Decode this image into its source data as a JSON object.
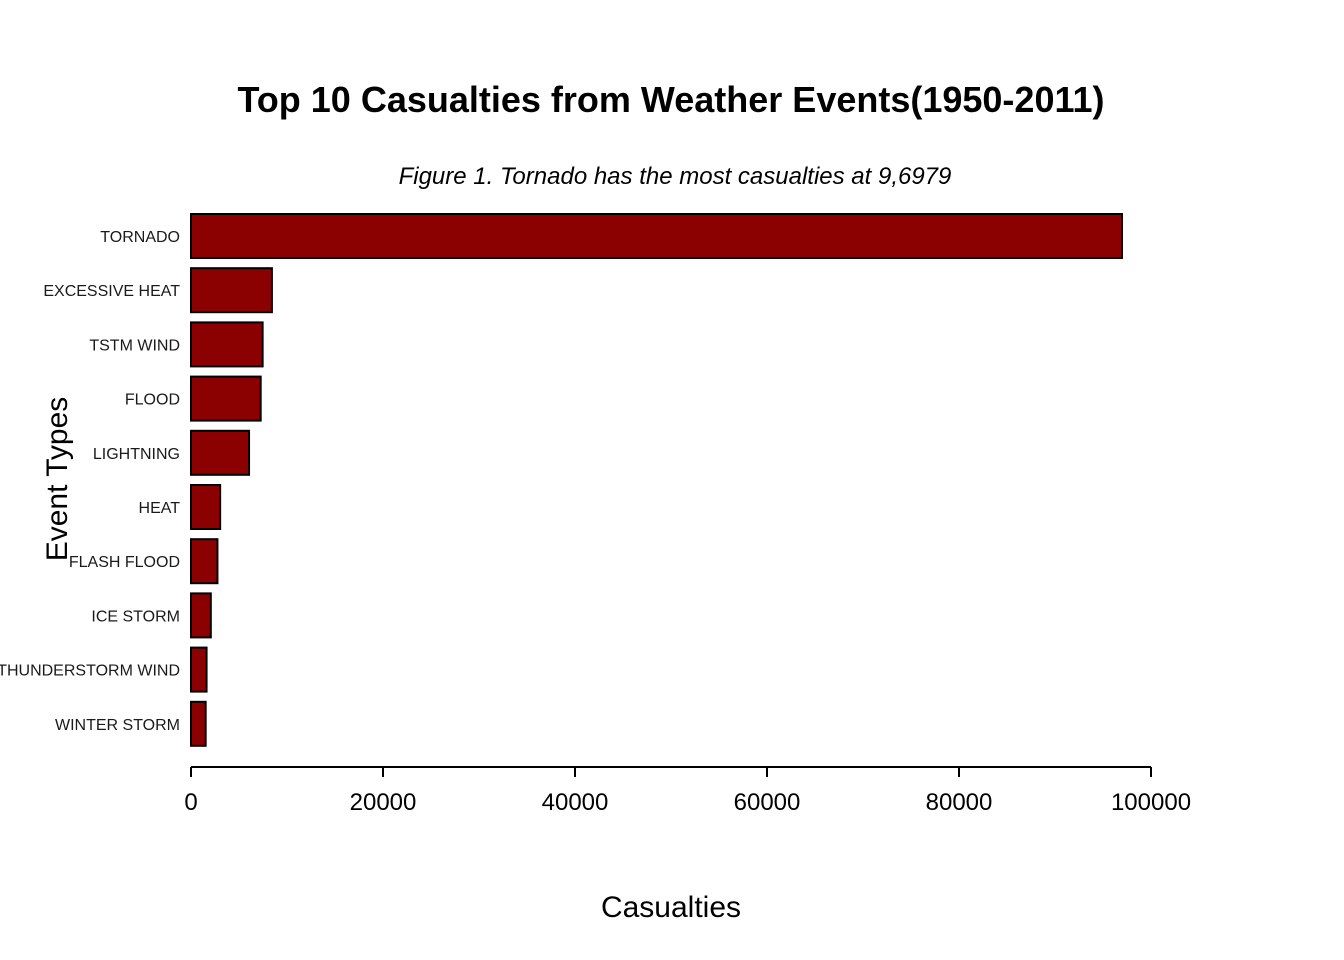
{
  "chart_data": {
    "type": "bar",
    "orientation": "horizontal",
    "title": "Top 10 Casualties from Weather Events(1950-2011)",
    "subtitle": "Figure 1. Tornado has the most casualties at 9,6979",
    "xlabel": "Casualties",
    "ylabel": "Event Types",
    "xlim": [
      0,
      100000
    ],
    "xticks": [
      0,
      20000,
      40000,
      60000,
      80000,
      100000
    ],
    "xtick_labels": [
      "0",
      "20000",
      "40000",
      "60000",
      "80000",
      "100000"
    ],
    "categories": [
      "TORNADO",
      "EXCESSIVE HEAT",
      "TSTM WIND",
      "FLOOD",
      "LIGHTNING",
      "HEAT",
      "FLASH FLOOD",
      "ICE STORM",
      "THUNDERSTORM WIND",
      "WINTER STORM"
    ],
    "values": [
      96979,
      8428,
      7461,
      7259,
      6046,
      3037,
      2755,
      2064,
      1621,
      1527
    ],
    "bar_color": "#8b0000",
    "grid": false,
    "legend": "none"
  }
}
